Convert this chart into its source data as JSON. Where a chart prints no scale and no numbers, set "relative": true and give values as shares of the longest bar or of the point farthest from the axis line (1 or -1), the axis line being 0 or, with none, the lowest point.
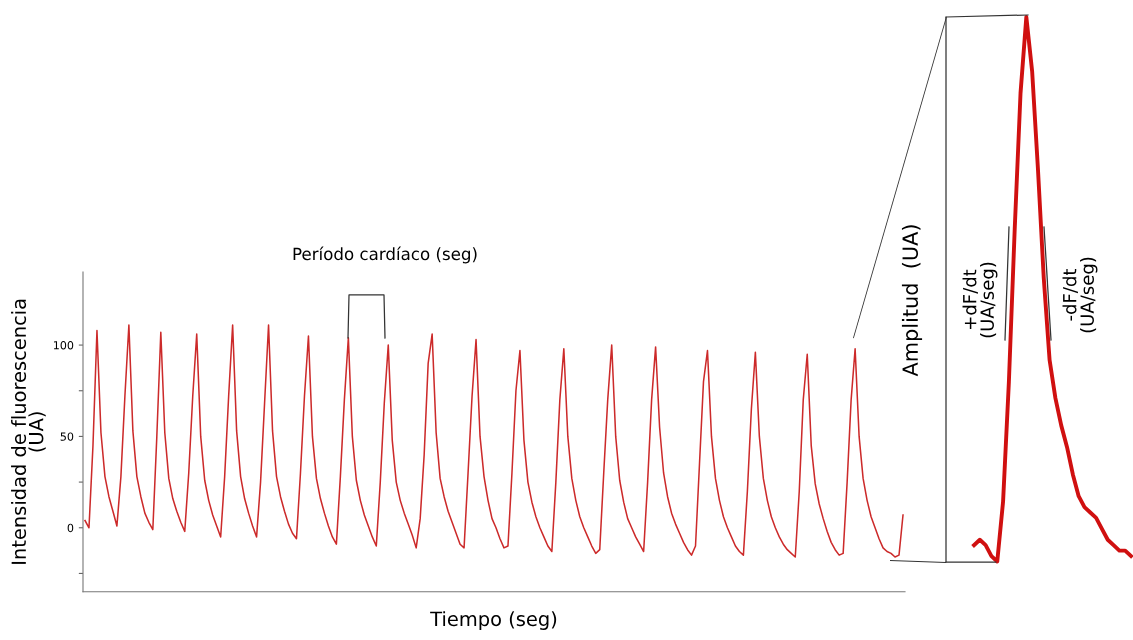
{
  "chart_data": [
    {
      "type": "line",
      "xlabel": "Tiempo (seg)",
      "ylabel": "Intensidad de fluorescencia\n(UA)",
      "annotations": [
        "Período cardíaco (seg)"
      ],
      "color": "#cc2a2a",
      "ylim": [
        -35,
        140
      ],
      "yticks": [
        {
          "value": -25,
          "label": null
        },
        0,
        {
          "value": 25,
          "label": null
        },
        50,
        {
          "value": 75,
          "label": null
        },
        100
      ],
      "tick_labels": "y",
      "categories": [
        null,
        null,
        null,
        null,
        null,
        null,
        null,
        null,
        null,
        null,
        null,
        null,
        null,
        null,
        null,
        null,
        null,
        null,
        null,
        null,
        null,
        null,
        null,
        null,
        null,
        null,
        null,
        null,
        null,
        null,
        null,
        null,
        null,
        null,
        null,
        null,
        null,
        null,
        null,
        null,
        null,
        null,
        null,
        null,
        null,
        null,
        null,
        null,
        null,
        null,
        null,
        null,
        null,
        null,
        null,
        null,
        null,
        null,
        null,
        null,
        null,
        null,
        null,
        null,
        null,
        null,
        null,
        null,
        null,
        null,
        null,
        null,
        null,
        null,
        null,
        null,
        null,
        null,
        null,
        null,
        null,
        null,
        null,
        null,
        null,
        null,
        null,
        null,
        null,
        null,
        null,
        null,
        null,
        null,
        null,
        null,
        null,
        null,
        null,
        null,
        null,
        null,
        null,
        null,
        null,
        null,
        null,
        null,
        null,
        null,
        null,
        null,
        null,
        null,
        null,
        null,
        null,
        null,
        null,
        null,
        null,
        null,
        null,
        null,
        null,
        null,
        null,
        null,
        null,
        null,
        null,
        null,
        null,
        null,
        null,
        null,
        null,
        null,
        null,
        null,
        null,
        null,
        null,
        null,
        null,
        null,
        null,
        null,
        null,
        null,
        null,
        null,
        null,
        null,
        null,
        null,
        null,
        null,
        null,
        null,
        null,
        null,
        null,
        null,
        null,
        null,
        null,
        null,
        null,
        null,
        null,
        null,
        null,
        null,
        null,
        null,
        null,
        null,
        null,
        null,
        null,
        null,
        null,
        null,
        null,
        null,
        null,
        null,
        null,
        null,
        null,
        null,
        null,
        null,
        null,
        null,
        null,
        null,
        null,
        null,
        null,
        null,
        null,
        null,
        null,
        null
      ],
      "values": [
        4,
        0,
        45,
        108,
        52,
        28,
        17,
        9,
        1,
        28,
        72,
        111,
        53,
        28,
        17,
        8,
        3,
        -1,
        50,
        107,
        52,
        27,
        16,
        9,
        3,
        -2,
        30,
        72,
        106,
        50,
        26,
        15,
        7,
        1,
        -5,
        28,
        72,
        111,
        53,
        28,
        16,
        8,
        1,
        -5,
        25,
        68,
        111,
        53,
        28,
        17,
        9,
        2,
        -3,
        -6,
        30,
        72,
        105,
        50,
        27,
        16,
        8,
        1,
        -5,
        -9,
        28,
        70,
        104,
        50,
        26,
        15,
        7,
        1,
        -5,
        -10,
        25,
        68,
        100,
        48,
        25,
        15,
        8,
        2,
        -4,
        -11,
        5,
        40,
        90,
        106,
        52,
        27,
        17,
        9,
        3,
        -3,
        -9,
        -11,
        30,
        72,
        103,
        50,
        28,
        15,
        5,
        0,
        -6,
        -11,
        -10,
        30,
        75,
        97,
        48,
        25,
        14,
        6,
        0,
        -5,
        -10,
        -13,
        25,
        70,
        98,
        50,
        27,
        15,
        6,
        0,
        -5,
        -10,
        -14,
        -12,
        30,
        70,
        100,
        50,
        26,
        14,
        5,
        0,
        -5,
        -9,
        -13,
        25,
        70,
        99,
        55,
        30,
        17,
        8,
        2,
        -3,
        -8,
        -12,
        -15,
        -10,
        35,
        80,
        97,
        50,
        27,
        15,
        6,
        0,
        -5,
        -10,
        -13,
        -15,
        20,
        65,
        96,
        50,
        27,
        15,
        6,
        0,
        -5,
        -9,
        -12,
        -14,
        -16,
        20,
        70,
        95,
        45,
        24,
        13,
        5,
        -2,
        -8,
        -12,
        -15,
        -14,
        25,
        70,
        98,
        50,
        27,
        15,
        6,
        0,
        -6,
        -11,
        -13,
        -14,
        -16,
        -15,
        7
      ]
    },
    {
      "type": "line",
      "relative": true,
      "color": "#d01010",
      "annotations": [
        "Amplitud  (UA)",
        "+dF/dt\n(UA/seg)",
        "-dF/dt\n(UA/seg)"
      ],
      "categories": [
        null,
        null,
        null,
        null,
        null,
        null,
        null,
        null,
        null,
        null,
        null,
        null,
        null,
        null,
        null,
        null,
        null,
        null,
        null,
        null,
        null,
        null,
        null,
        null,
        null,
        null,
        null,
        null
      ],
      "values": [
        0.03,
        0.04,
        0.03,
        0.01,
        0,
        0.11,
        0.33,
        0.61,
        0.86,
        1,
        0.9,
        0.72,
        0.52,
        0.37,
        0.3,
        0.25,
        0.21,
        0.16,
        0.12,
        0.1,
        0.09,
        0.08,
        0.06,
        0.04,
        0.03,
        0.02,
        0.02,
        0.01
      ]
    }
  ]
}
